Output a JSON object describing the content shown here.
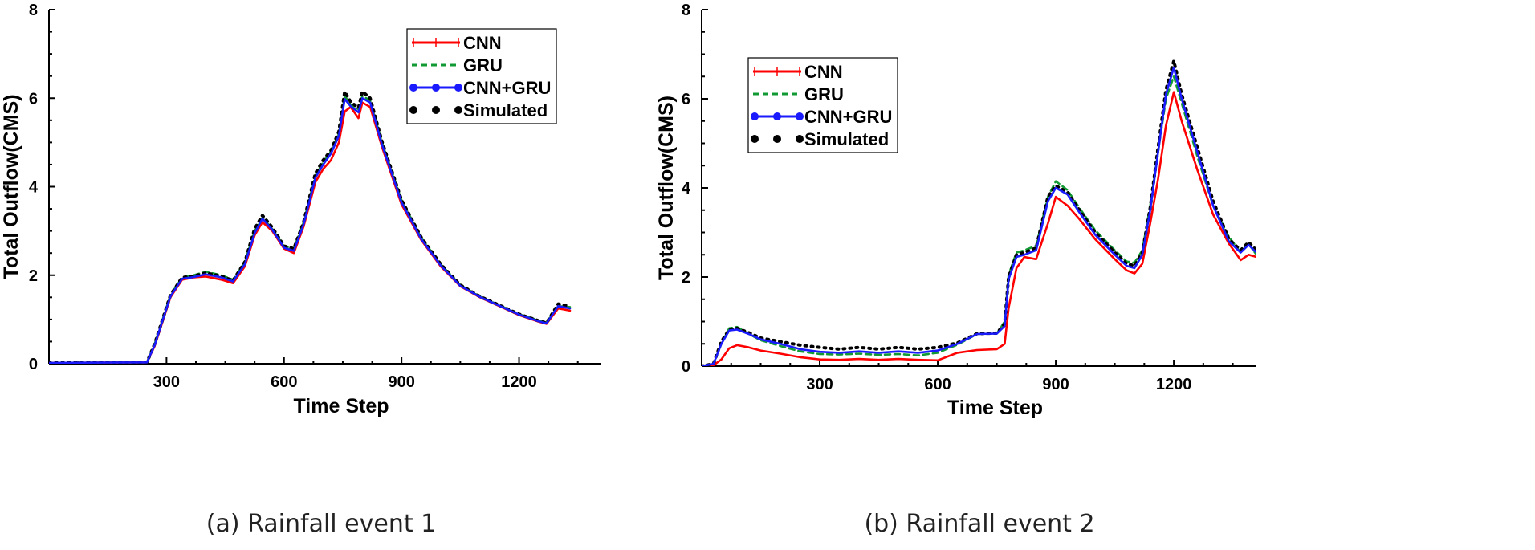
{
  "chart_data": [
    {
      "type": "line",
      "caption": "(a) Rainfall event 1",
      "xlabel": "Time Step",
      "ylabel": "Total Outflow(CMS)",
      "xlim": [
        0,
        1410
      ],
      "ylim": [
        0,
        8
      ],
      "xticks": [
        300,
        600,
        900,
        1200
      ],
      "yticks": [
        0,
        2,
        4,
        6,
        8
      ],
      "legend_position": "top-right",
      "series": [
        {
          "name": "CNN",
          "color": "#ff0000",
          "style": "solid",
          "marker": "plus",
          "x": [
            0,
            250,
            270,
            290,
            310,
            340,
            370,
            400,
            440,
            470,
            500,
            525,
            545,
            570,
            600,
            625,
            650,
            680,
            700,
            720,
            740,
            755,
            770,
            790,
            800,
            820,
            850,
            900,
            950,
            1000,
            1050,
            1100,
            1150,
            1200,
            1250,
            1270,
            1300,
            1330
          ],
          "y": [
            0.02,
            0.03,
            0.4,
            0.95,
            1.5,
            1.9,
            1.95,
            1.97,
            1.9,
            1.82,
            2.2,
            2.9,
            3.2,
            3.0,
            2.6,
            2.5,
            3.1,
            4.1,
            4.4,
            4.6,
            5.0,
            5.7,
            5.8,
            5.55,
            5.9,
            5.8,
            4.9,
            3.6,
            2.8,
            2.2,
            1.75,
            1.5,
            1.3,
            1.1,
            0.95,
            0.9,
            1.25,
            1.2
          ]
        },
        {
          "name": "GRU",
          "color": "#119933",
          "style": "dashed",
          "marker": "none",
          "x": [
            0,
            250,
            270,
            290,
            310,
            340,
            370,
            400,
            440,
            470,
            500,
            525,
            545,
            570,
            600,
            625,
            650,
            680,
            700,
            720,
            740,
            755,
            770,
            790,
            800,
            820,
            850,
            900,
            950,
            1000,
            1050,
            1100,
            1150,
            1200,
            1250,
            1270,
            1300,
            1330
          ],
          "y": [
            0.02,
            0.03,
            0.45,
            1.0,
            1.55,
            1.95,
            2.0,
            2.08,
            2.0,
            1.9,
            2.3,
            3.0,
            3.3,
            3.05,
            2.65,
            2.6,
            3.2,
            4.25,
            4.55,
            4.8,
            5.2,
            6.05,
            5.85,
            5.75,
            6.05,
            5.95,
            5.0,
            3.7,
            2.85,
            2.25,
            1.78,
            1.52,
            1.32,
            1.12,
            0.98,
            0.93,
            1.3,
            1.28
          ]
        },
        {
          "name": "CNN+GRU",
          "color": "#1a1aff",
          "style": "solid",
          "marker": "circle",
          "x": [
            0,
            250,
            270,
            290,
            310,
            340,
            370,
            400,
            440,
            470,
            500,
            525,
            545,
            570,
            600,
            625,
            650,
            680,
            700,
            720,
            740,
            755,
            770,
            790,
            800,
            820,
            850,
            900,
            950,
            1000,
            1050,
            1100,
            1150,
            1200,
            1250,
            1270,
            1300,
            1330
          ],
          "y": [
            0.02,
            0.03,
            0.42,
            0.98,
            1.52,
            1.92,
            1.96,
            2.02,
            1.95,
            1.86,
            2.25,
            2.95,
            3.28,
            3.03,
            2.62,
            2.55,
            3.15,
            4.2,
            4.5,
            4.75,
            5.15,
            5.98,
            5.82,
            5.68,
            6.0,
            5.9,
            4.95,
            3.65,
            2.82,
            2.22,
            1.76,
            1.51,
            1.31,
            1.11,
            0.96,
            0.91,
            1.3,
            1.25
          ]
        },
        {
          "name": "Simulated",
          "color": "#000000",
          "style": "dotted",
          "marker": "circle",
          "x": [
            0,
            250,
            270,
            290,
            310,
            340,
            370,
            400,
            440,
            470,
            500,
            525,
            545,
            570,
            600,
            625,
            650,
            680,
            700,
            720,
            740,
            755,
            770,
            790,
            800,
            820,
            850,
            900,
            950,
            1000,
            1050,
            1100,
            1150,
            1200,
            1250,
            1270,
            1300,
            1330
          ],
          "y": [
            0.02,
            0.03,
            0.45,
            1.0,
            1.55,
            1.95,
            1.98,
            2.05,
            1.98,
            1.88,
            2.3,
            3.05,
            3.35,
            3.08,
            2.66,
            2.6,
            3.2,
            4.3,
            4.6,
            4.82,
            5.25,
            6.15,
            5.92,
            5.78,
            6.15,
            6.0,
            5.02,
            3.7,
            2.86,
            2.25,
            1.78,
            1.52,
            1.32,
            1.12,
            0.97,
            0.92,
            1.35,
            1.3
          ]
        }
      ]
    },
    {
      "type": "line",
      "caption": "(b) Rainfall event 2",
      "xlabel": "Time Step",
      "ylabel": "Total Outflow(CMS)",
      "xlim": [
        0,
        1410
      ],
      "ylim": [
        0,
        8
      ],
      "xticks": [
        300,
        600,
        900,
        1200
      ],
      "yticks": [
        0,
        2,
        4,
        6,
        8
      ],
      "legend_position": "top-left",
      "series": [
        {
          "name": "CNN",
          "color": "#ff0000",
          "style": "solid",
          "marker": "plus",
          "x": [
            0,
            30,
            50,
            70,
            90,
            120,
            150,
            200,
            250,
            300,
            350,
            400,
            450,
            500,
            550,
            600,
            650,
            700,
            750,
            770,
            780,
            800,
            820,
            850,
            880,
            900,
            930,
            960,
            1000,
            1050,
            1080,
            1100,
            1120,
            1140,
            1160,
            1180,
            1200,
            1220,
            1260,
            1300,
            1340,
            1370,
            1390,
            1410
          ],
          "y": [
            0,
            0.02,
            0.15,
            0.4,
            0.47,
            0.42,
            0.35,
            0.28,
            0.2,
            0.15,
            0.14,
            0.16,
            0.14,
            0.16,
            0.14,
            0.13,
            0.3,
            0.36,
            0.38,
            0.5,
            1.3,
            2.2,
            2.45,
            2.4,
            3.2,
            3.8,
            3.6,
            3.3,
            2.85,
            2.4,
            2.15,
            2.08,
            2.3,
            3.2,
            4.2,
            5.4,
            6.15,
            5.5,
            4.4,
            3.4,
            2.75,
            2.38,
            2.5,
            2.45
          ]
        },
        {
          "name": "GRU",
          "color": "#119933",
          "style": "dashed",
          "marker": "none",
          "x": [
            0,
            30,
            50,
            70,
            90,
            120,
            150,
            200,
            250,
            300,
            350,
            400,
            450,
            500,
            550,
            600,
            650,
            700,
            750,
            770,
            780,
            800,
            820,
            850,
            880,
            900,
            930,
            960,
            1000,
            1050,
            1080,
            1100,
            1120,
            1140,
            1160,
            1180,
            1200,
            1220,
            1260,
            1300,
            1340,
            1370,
            1390,
            1410
          ],
          "y": [
            0,
            0.05,
            0.5,
            0.85,
            0.88,
            0.72,
            0.58,
            0.45,
            0.33,
            0.27,
            0.26,
            0.28,
            0.25,
            0.27,
            0.24,
            0.3,
            0.48,
            0.72,
            0.73,
            1.0,
            2.05,
            2.55,
            2.6,
            2.7,
            3.8,
            4.15,
            3.95,
            3.55,
            3.05,
            2.6,
            2.35,
            2.32,
            2.6,
            3.6,
            4.8,
            6.0,
            6.5,
            5.9,
            4.7,
            3.6,
            2.9,
            2.55,
            2.75,
            2.5
          ]
        },
        {
          "name": "CNN+GRU",
          "color": "#1a1aff",
          "style": "solid",
          "marker": "circle",
          "x": [
            0,
            30,
            50,
            70,
            90,
            120,
            150,
            200,
            250,
            300,
            350,
            400,
            450,
            500,
            550,
            600,
            650,
            700,
            750,
            770,
            780,
            800,
            820,
            850,
            880,
            900,
            930,
            960,
            1000,
            1050,
            1080,
            1100,
            1120,
            1140,
            1160,
            1180,
            1200,
            1220,
            1260,
            1300,
            1340,
            1370,
            1390,
            1410
          ],
          "y": [
            0,
            0.05,
            0.5,
            0.8,
            0.82,
            0.72,
            0.6,
            0.5,
            0.38,
            0.32,
            0.3,
            0.33,
            0.3,
            0.33,
            0.3,
            0.35,
            0.5,
            0.72,
            0.73,
            0.9,
            1.95,
            2.45,
            2.5,
            2.6,
            3.7,
            4.0,
            3.85,
            3.45,
            2.95,
            2.5,
            2.25,
            2.2,
            2.5,
            3.5,
            4.8,
            6.1,
            6.7,
            6.0,
            4.8,
            3.6,
            2.8,
            2.55,
            2.72,
            2.55
          ]
        },
        {
          "name": "Simulated",
          "color": "#000000",
          "style": "dotted",
          "marker": "circle",
          "x": [
            0,
            30,
            50,
            70,
            90,
            120,
            150,
            200,
            250,
            300,
            350,
            400,
            450,
            500,
            550,
            600,
            650,
            700,
            750,
            770,
            780,
            800,
            820,
            850,
            880,
            900,
            930,
            960,
            1000,
            1050,
            1080,
            1100,
            1120,
            1140,
            1160,
            1180,
            1200,
            1220,
            1260,
            1300,
            1340,
            1370,
            1390,
            1410
          ],
          "y": [
            0,
            0.05,
            0.55,
            0.82,
            0.85,
            0.75,
            0.63,
            0.55,
            0.47,
            0.42,
            0.38,
            0.42,
            0.38,
            0.42,
            0.38,
            0.42,
            0.52,
            0.73,
            0.74,
            0.95,
            2.0,
            2.5,
            2.55,
            2.65,
            3.8,
            4.05,
            3.9,
            3.5,
            3.0,
            2.55,
            2.3,
            2.25,
            2.55,
            3.55,
            4.9,
            6.2,
            6.85,
            6.1,
            4.9,
            3.7,
            2.85,
            2.6,
            2.78,
            2.6
          ]
        }
      ]
    }
  ]
}
